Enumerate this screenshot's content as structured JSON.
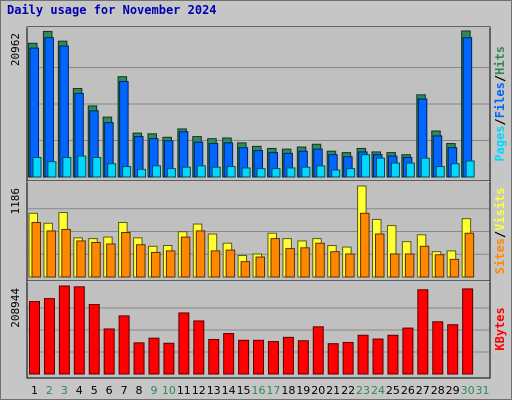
{
  "title": "Daily usage for November 2024",
  "colors": {
    "background": "#c6c6c6",
    "plot_background": "#c0c0c0",
    "title": "#0000b3",
    "hits": "#2e8b57",
    "files": "#0066ff",
    "pages": "#00d8ff",
    "visits": "#ffff33",
    "sites": "#ff8800",
    "kbytes": "#ff0000",
    "weekend_day": "#2e8b57",
    "weekday": "#000000"
  },
  "chart_data": [
    {
      "type": "bar",
      "panel": "hits-files-pages",
      "ymax_label": "20962",
      "ylim": [
        0,
        20962
      ],
      "legend": [
        {
          "name": "Pages",
          "color": "#00d8ff"
        },
        {
          "name": "/",
          "color": "#000000"
        },
        {
          "name": "Files",
          "color": "#0066ff"
        },
        {
          "name": "/",
          "color": "#000000"
        },
        {
          "name": "Hits",
          "color": "#2e8b57"
        }
      ],
      "series": [
        {
          "name": "Hits",
          "values": [
            19200,
            20900,
            19500,
            12700,
            10200,
            8600,
            14400,
            6300,
            6200,
            5700,
            6900,
            5800,
            5500,
            5600,
            4900,
            4400,
            4100,
            4000,
            4300,
            4700,
            3700,
            3500,
            4100,
            3600,
            3500,
            3200,
            11800,
            6600,
            4800,
            20962,
            null
          ]
        },
        {
          "name": "Files",
          "values": [
            18500,
            20000,
            18800,
            12000,
            9500,
            7800,
            13700,
            5800,
            5500,
            5200,
            6500,
            5000,
            4800,
            4900,
            4200,
            3800,
            3500,
            3400,
            3700,
            4000,
            3200,
            2900,
            3600,
            3200,
            3000,
            2800,
            11200,
            5900,
            4200,
            20000,
            null
          ]
        },
        {
          "name": "Pages",
          "values": [
            2800,
            2200,
            2800,
            3000,
            2800,
            1900,
            1500,
            1100,
            1600,
            1200,
            1400,
            1600,
            1400,
            1500,
            1300,
            1200,
            1200,
            1300,
            1400,
            1600,
            1000,
            1200,
            3200,
            2700,
            2000,
            2000,
            2700,
            1500,
            1900,
            2300,
            null
          ]
        }
      ]
    },
    {
      "type": "bar",
      "panel": "visits-sites",
      "ymax_label": "1186",
      "ylim": [
        0,
        1186
      ],
      "legend": [
        {
          "name": "Sites",
          "color": "#ff8800"
        },
        {
          "name": "/",
          "color": "#000000"
        },
        {
          "name": "Visits",
          "color": "#ffff33"
        }
      ],
      "series": [
        {
          "name": "Visits",
          "values": [
            830,
            700,
            840,
            510,
            500,
            520,
            710,
            510,
            400,
            410,
            590,
            690,
            560,
            440,
            280,
            300,
            570,
            500,
            470,
            500,
            410,
            390,
            1186,
            750,
            670,
            460,
            550,
            330,
            340,
            760,
            null
          ]
        },
        {
          "name": "Sites",
          "values": [
            710,
            600,
            620,
            470,
            450,
            430,
            580,
            420,
            320,
            340,
            520,
            600,
            340,
            350,
            200,
            260,
            500,
            370,
            380,
            440,
            330,
            300,
            830,
            560,
            300,
            300,
            400,
            290,
            230,
            570,
            null
          ]
        }
      ]
    },
    {
      "type": "bar",
      "panel": "kbytes",
      "ymax_label": "208944",
      "ylim": [
        0,
        208944
      ],
      "legend": [
        {
          "name": "KBytes",
          "color": "#ff0000"
        }
      ],
      "series": [
        {
          "name": "KBytes",
          "values": [
            172000,
            179000,
            208944,
            207000,
            165000,
            107000,
            138000,
            74000,
            85000,
            73000,
            145000,
            126000,
            82000,
            96000,
            80000,
            80000,
            77000,
            87000,
            79000,
            112000,
            72000,
            75000,
            92000,
            83000,
            92000,
            109000,
            200000,
            124000,
            117000,
            202000,
            null
          ]
        }
      ]
    }
  ],
  "days": [
    "1",
    "2",
    "3",
    "4",
    "5",
    "6",
    "7",
    "8",
    "9",
    "10",
    "11",
    "12",
    "13",
    "14",
    "15",
    "16",
    "17",
    "18",
    "19",
    "20",
    "21",
    "22",
    "23",
    "24",
    "25",
    "26",
    "27",
    "28",
    "29",
    "30",
    "31"
  ],
  "weekend_days": [
    2,
    3,
    9,
    10,
    16,
    17,
    23,
    24,
    30,
    31
  ]
}
